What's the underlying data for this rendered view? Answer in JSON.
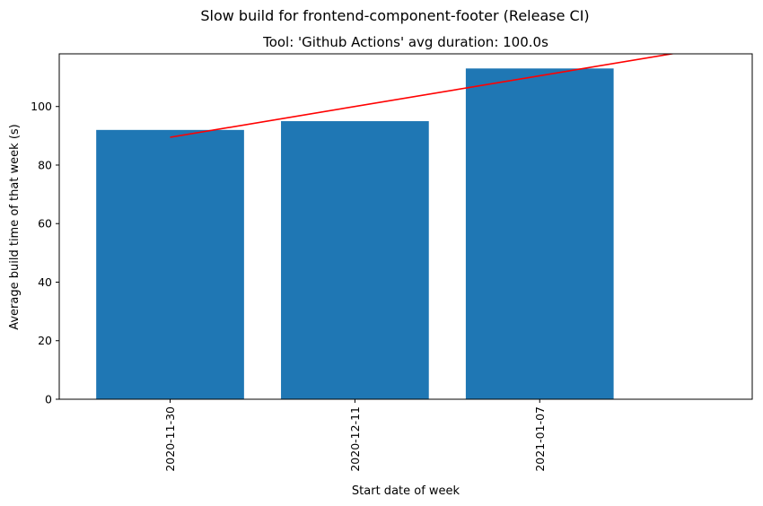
{
  "chart_data": {
    "type": "bar",
    "suptitle": "Slow build for frontend-component-footer (Release CI)",
    "title": "Tool: 'Github Actions' avg duration: 100.0s",
    "xlabel": "Start date of week",
    "ylabel": "Average build time of that week (s)",
    "categories": [
      "2020-11-30",
      "2020-12-11",
      "2021-01-07"
    ],
    "values": [
      92,
      95,
      113
    ],
    "ylim": [
      0,
      118
    ],
    "yticks": [
      0,
      20,
      40,
      60,
      80,
      100
    ],
    "trend_line": {
      "color": "#ff0000",
      "start_value": 89.5,
      "slope_per_category": 10.5
    },
    "bar_color": "#1f77b4",
    "grid": false,
    "legend": "none"
  }
}
